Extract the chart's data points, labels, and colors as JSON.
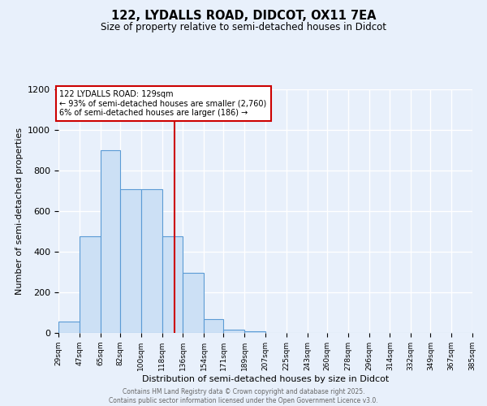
{
  "title": "122, LYDALLS ROAD, DIDCOT, OX11 7EA",
  "subtitle": "Size of property relative to semi-detached houses in Didcot",
  "xlabel": "Distribution of semi-detached houses by size in Didcot",
  "ylabel": "Number of semi-detached properties",
  "bin_edges": [
    29,
    47,
    65,
    82,
    100,
    118,
    136,
    154,
    171,
    189,
    207,
    225,
    243,
    260,
    278,
    296,
    314,
    332,
    349,
    367,
    385
  ],
  "bin_counts": [
    57,
    475,
    900,
    710,
    710,
    475,
    295,
    70,
    15,
    10,
    0,
    0,
    0,
    0,
    0,
    0,
    0,
    0,
    0,
    0
  ],
  "bar_color": "#cce0f5",
  "bar_edge_color": "#5b9bd5",
  "vline_x": 129,
  "vline_color": "#cc0000",
  "annotation_line1": "122 LYDALLS ROAD: 129sqm",
  "annotation_line2": "← 93% of semi-detached houses are smaller (2,760)",
  "annotation_line3": "6% of semi-detached houses are larger (186) →",
  "annotation_box_color": "#ffffff",
  "annotation_box_edge_color": "#cc0000",
  "ylim": [
    0,
    1200
  ],
  "background_color": "#e8f0fb",
  "grid_color": "#ffffff",
  "footer_text": "Contains HM Land Registry data © Crown copyright and database right 2025.\nContains public sector information licensed under the Open Government Licence v3.0.",
  "tick_labels": [
    "29sqm",
    "47sqm",
    "65sqm",
    "82sqm",
    "100sqm",
    "118sqm",
    "136sqm",
    "154sqm",
    "171sqm",
    "189sqm",
    "207sqm",
    "225sqm",
    "243sqm",
    "260sqm",
    "278sqm",
    "296sqm",
    "314sqm",
    "332sqm",
    "349sqm",
    "367sqm",
    "385sqm"
  ],
  "yticks": [
    0,
    200,
    400,
    600,
    800,
    1000,
    1200
  ]
}
